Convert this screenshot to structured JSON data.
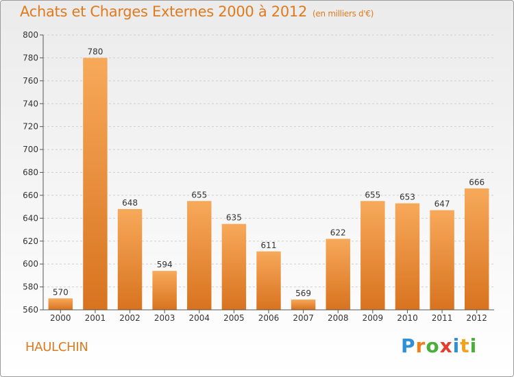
{
  "header": {
    "title": "Achats et Charges Externes 2000 à 2012",
    "unit": "(en milliers d'€)"
  },
  "footer": {
    "commune": "HAULCHIN",
    "brand_letters": [
      {
        "ch": "P",
        "color": "#2f8fd8"
      },
      {
        "ch": "r",
        "color": "#f07f1a"
      },
      {
        "ch": "o",
        "color": "#4cae3a"
      },
      {
        "ch": "x",
        "color": "#e23d2e"
      },
      {
        "ch": "i",
        "color": "#2f8fd8"
      },
      {
        "ch": "t",
        "color": "#f2a21c"
      },
      {
        "ch": "i",
        "color": "#4cae3a"
      }
    ]
  },
  "colors": {
    "accent": "#e07a1d",
    "bar_top": "#f7a95a",
    "bar_bottom": "#d8731f"
  },
  "chart_data": {
    "type": "bar",
    "title": "Achats et Charges Externes 2000 à 2012",
    "subtitle": "(en milliers d'€)",
    "categories": [
      "2000",
      "2001",
      "2002",
      "2003",
      "2004",
      "2005",
      "2006",
      "2007",
      "2008",
      "2009",
      "2010",
      "2011",
      "2012"
    ],
    "values": [
      570,
      780,
      648,
      594,
      655,
      635,
      611,
      569,
      622,
      655,
      653,
      647,
      666
    ],
    "ylim": [
      560,
      800
    ],
    "yticks": [
      560,
      580,
      600,
      620,
      640,
      660,
      680,
      700,
      720,
      740,
      760,
      780,
      800
    ],
    "grid": true,
    "legend": "none"
  }
}
